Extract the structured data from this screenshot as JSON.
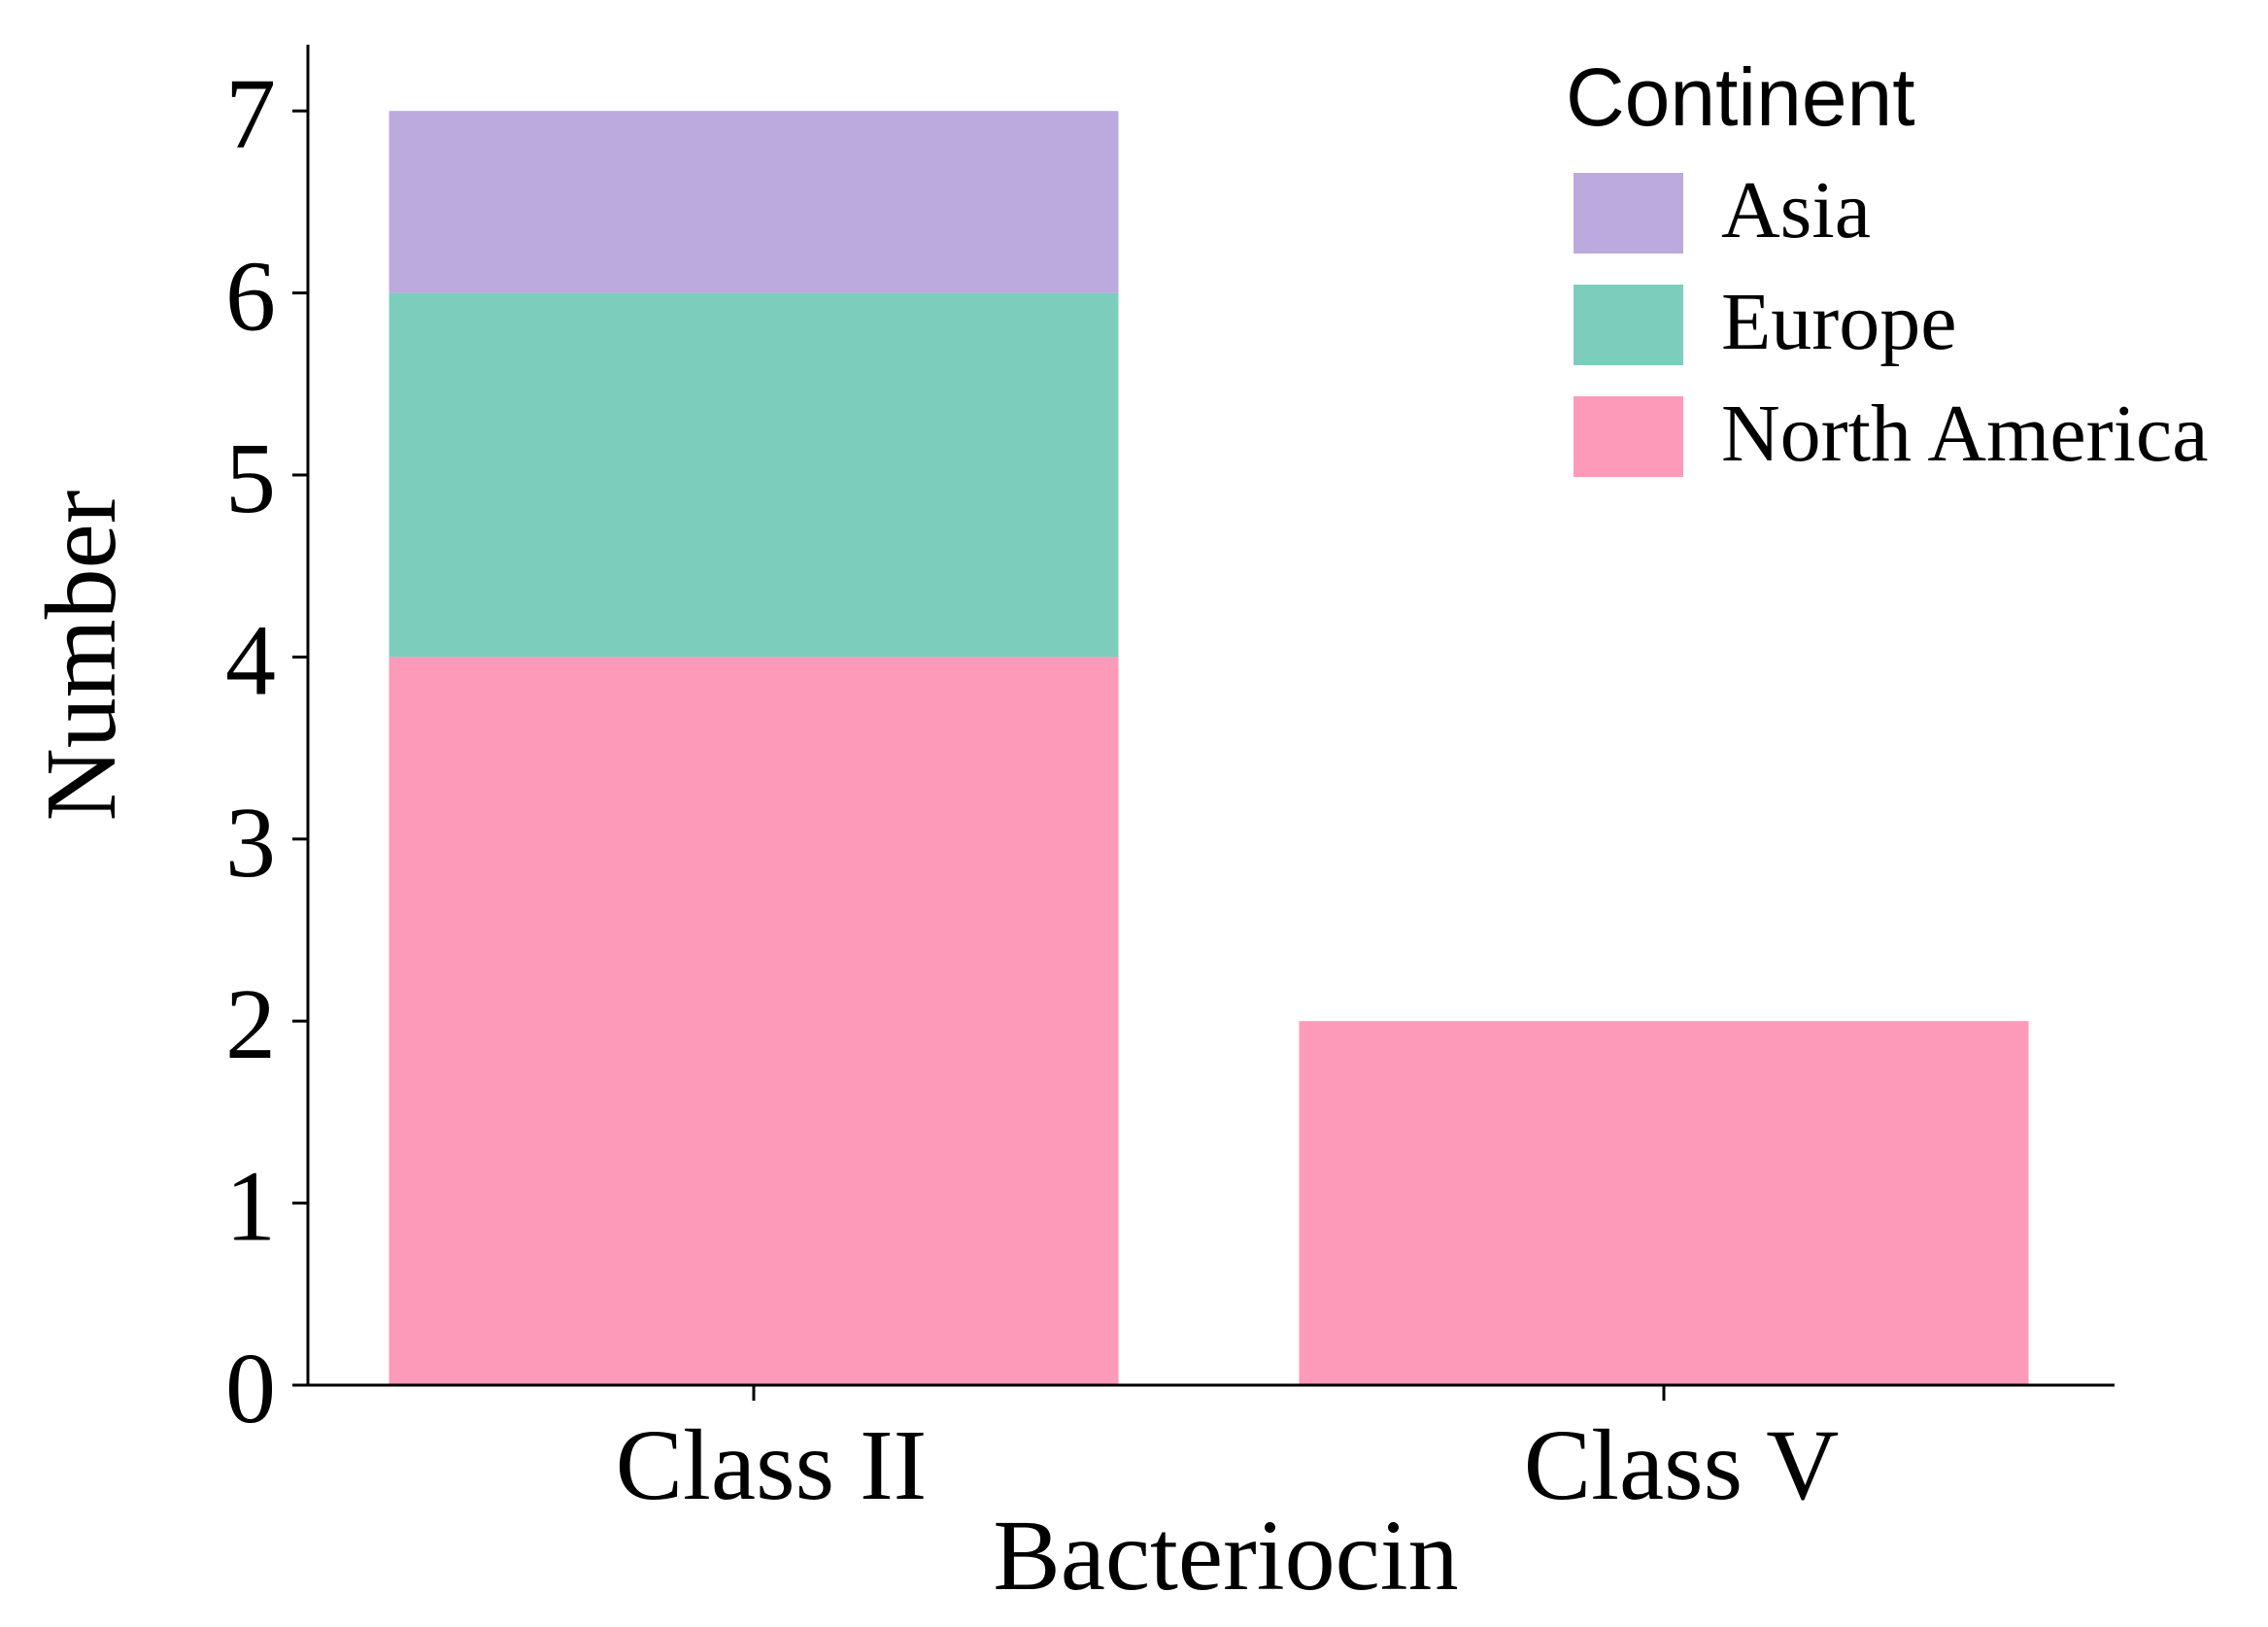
{
  "chart_data": {
    "type": "bar",
    "stacked": true,
    "categories": [
      "Class II",
      "Class V"
    ],
    "series": [
      {
        "name": "North America",
        "values": [
          4,
          2
        ],
        "color": "#fd9aba"
      },
      {
        "name": "Europe",
        "values": [
          2,
          0
        ],
        "color": "#7dcdbc"
      },
      {
        "name": "Asia",
        "values": [
          1,
          0
        ],
        "color": "#bcaade"
      }
    ],
    "xlabel": "Bacteriocin",
    "ylabel": "Number",
    "ylim": [
      0,
      7.35
    ],
    "yticks": [
      "0",
      "1",
      "2",
      "3",
      "4",
      "5",
      "6",
      "7"
    ],
    "grid": false,
    "legend": {
      "title": "Continent",
      "position": "top-right",
      "order": [
        "Asia",
        "Europe",
        "North America"
      ]
    }
  }
}
